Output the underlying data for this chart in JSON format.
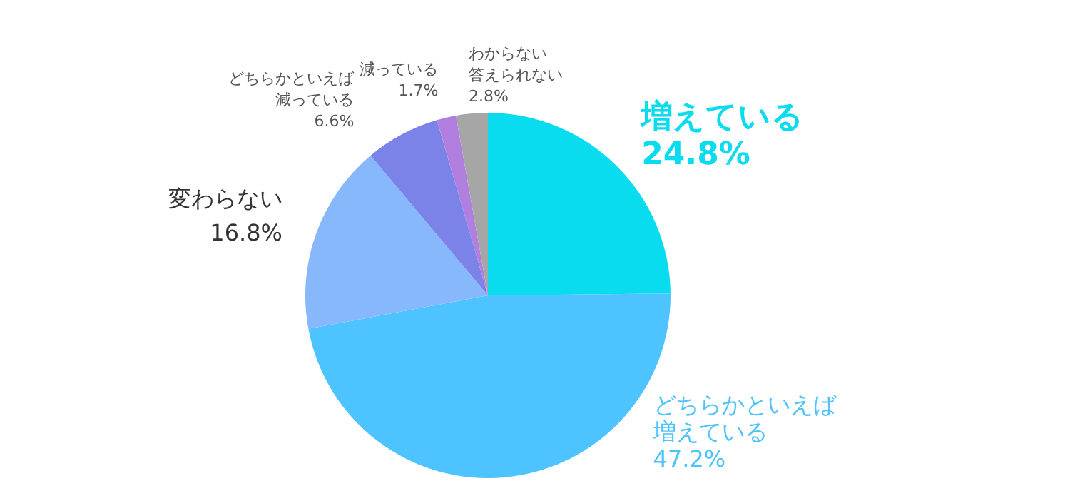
{
  "chart_data": {
    "type": "pie",
    "categories": [
      "増えている",
      "どちらかといえば増えている",
      "変わらない",
      "どちらかといえば減っている",
      "減っている",
      "わからない答えられない"
    ],
    "values": [
      24.8,
      47.2,
      16.8,
      6.6,
      1.7,
      2.8
    ],
    "value_labels": [
      "24.8%",
      "47.2%",
      "16.8%",
      "6.6%",
      "1.7%",
      "2.8%"
    ],
    "colors": [
      "#0adcf0",
      "#4dc3ff",
      "#86b8fb",
      "#7b82e8",
      "#b07fe0",
      "#a6a6a6"
    ]
  }
}
